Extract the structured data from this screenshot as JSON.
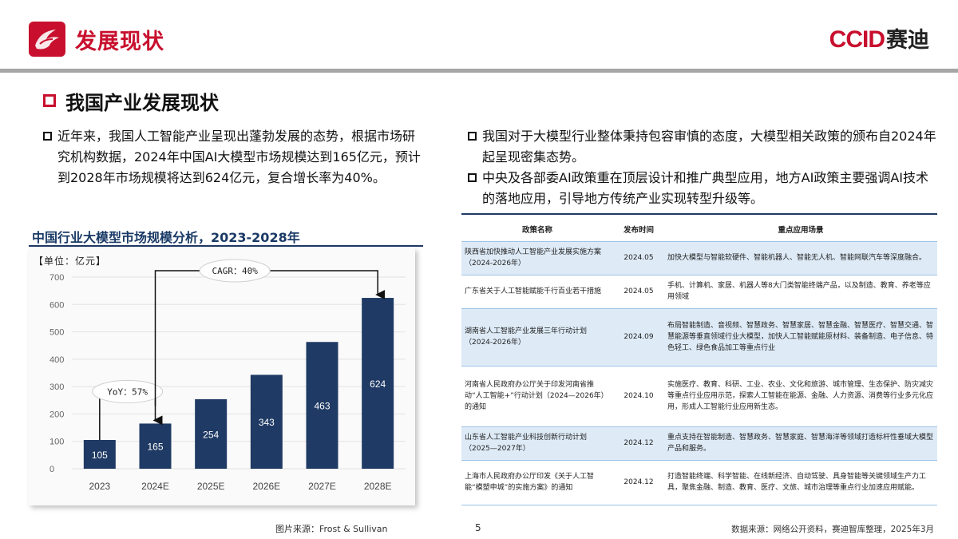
{
  "header": {
    "title": "发展现状",
    "brand_latin": "CCID",
    "brand_cn": "赛迪",
    "colors": {
      "accent": "#c8102e",
      "navy": "#1f3864",
      "table_stripe": "#deebf7"
    }
  },
  "section_title": "我国产业发展现状",
  "bullets": {
    "left": "近年来，我国人工智能产业呈现出蓬勃发展的态势，根据市场研究机构数据，2024年中国AI大模型市场规模达到165亿元，预计到2028年市场规模将达到624亿元，复合增长率为40%。",
    "right_1": "我国对于大模型行业整体秉持包容审慎的态度，大模型相关政策的颁布自2024年起呈现密集态势。",
    "right_2": "中央及各部委AI政策重在顶层设计和推广典型应用，地方AI政策主要强调AI技术的落地应用，引导地方传统产业实现转型升级等。"
  },
  "chart_data": {
    "type": "bar",
    "title": "中国行业大模型市场规模分析，2023-2028年",
    "unit_label": "【单位：亿元】",
    "categories": [
      "2023",
      "2024E",
      "2025E",
      "2026E",
      "2027E",
      "2028E"
    ],
    "values": [
      105,
      165,
      254,
      343,
      463,
      624
    ],
    "ylim": [
      0,
      700
    ],
    "yticks": [
      "700",
      "600",
      "500",
      "400",
      "300",
      "200",
      "100",
      "0"
    ],
    "grid": true,
    "bar_color": "#1f3a64",
    "annotations": {
      "yoy": "YoY：57%",
      "cagr": "CAGR：40%"
    },
    "source": "图片来源：Frost & Sullivan"
  },
  "table": {
    "headers": [
      "政策名称",
      "发布时间",
      "重点应用场景"
    ],
    "rows": [
      {
        "name": "陕西省加快推动人工智能产业发展实施方案（2024-2026年）",
        "date": "2024.05",
        "scene": "加快大模型与智能软硬件、智能机器人、智能无人机、智能网联汽车等深度融合。"
      },
      {
        "name": "广东省关于人工智能赋能千行百业若干措施",
        "date": "2024.05",
        "scene": "手机、计算机、家居、机器人等8大门类智能终端产品，以及制造、教育、养老等应用领域"
      },
      {
        "name": "湖南省人工智能产业发展三年行动计划（2024-2026年）",
        "date": "2024.09",
        "scene": "布局智能制造、音视频、智慧政务、智慧家居、智慧金融、智慧医疗、智慧交通、智慧能源等垂直领域行业大模型，加快人工智能赋能原材料、装备制造、电子信息、特色轻工、绿色食品加工等重点行业"
      },
      {
        "name": "河南省人民政府办公厅关于印发河南省推动“人工智能+”行动计划（2024—2026年）的通知",
        "date": "2024.10",
        "scene": "实施医疗、教育、科研、工业、农业、文化和旅游、城市管理、生态保护、防灾减灾等重点行业应用示范，探索人工智能在能源、金融、人力资源、消费等行业多元化应用，形成人工智能行业应用新生态。"
      },
      {
        "name": "山东省人工智能产业科技创新行动计划（2025—2027年）",
        "date": "2024.12",
        "scene": "重点支持在智能制造、智慧政务、智慧家庭、智慧海洋等领域打造标杆性垂域大模型产品和服务。"
      },
      {
        "name": "上海市人民政府办公厅印发《关于人工智能“模塑申城”的实施方案》的通知",
        "date": "2024.12",
        "scene": "打造智能终端、科学智能、在线新经济、自动驾驶、具身智能等关键领域生产力工具，聚焦金融、制造、教育、医疗、文旅、城市治理等重点行业加速应用赋能。"
      }
    ],
    "source": "数据来源：网络公开资料，赛迪智库整理，2025年3月"
  },
  "page_number": "5"
}
